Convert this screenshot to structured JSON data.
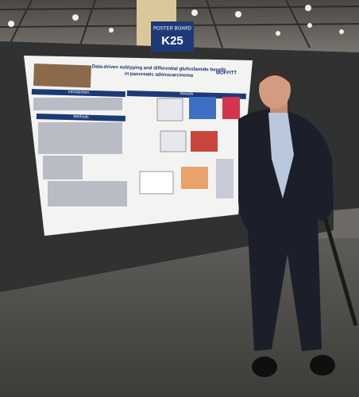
{
  "sign": {
    "label": "POSTER BOARD",
    "number": "K25"
  },
  "poster": {
    "title": "Data-driven subtyping and differential glufosfamide benefit",
    "subtitle": "in pancreatic adenocarcinoma",
    "logo": "MOFFITT",
    "sections": [
      "Introduction",
      "Methods",
      "Results"
    ]
  }
}
